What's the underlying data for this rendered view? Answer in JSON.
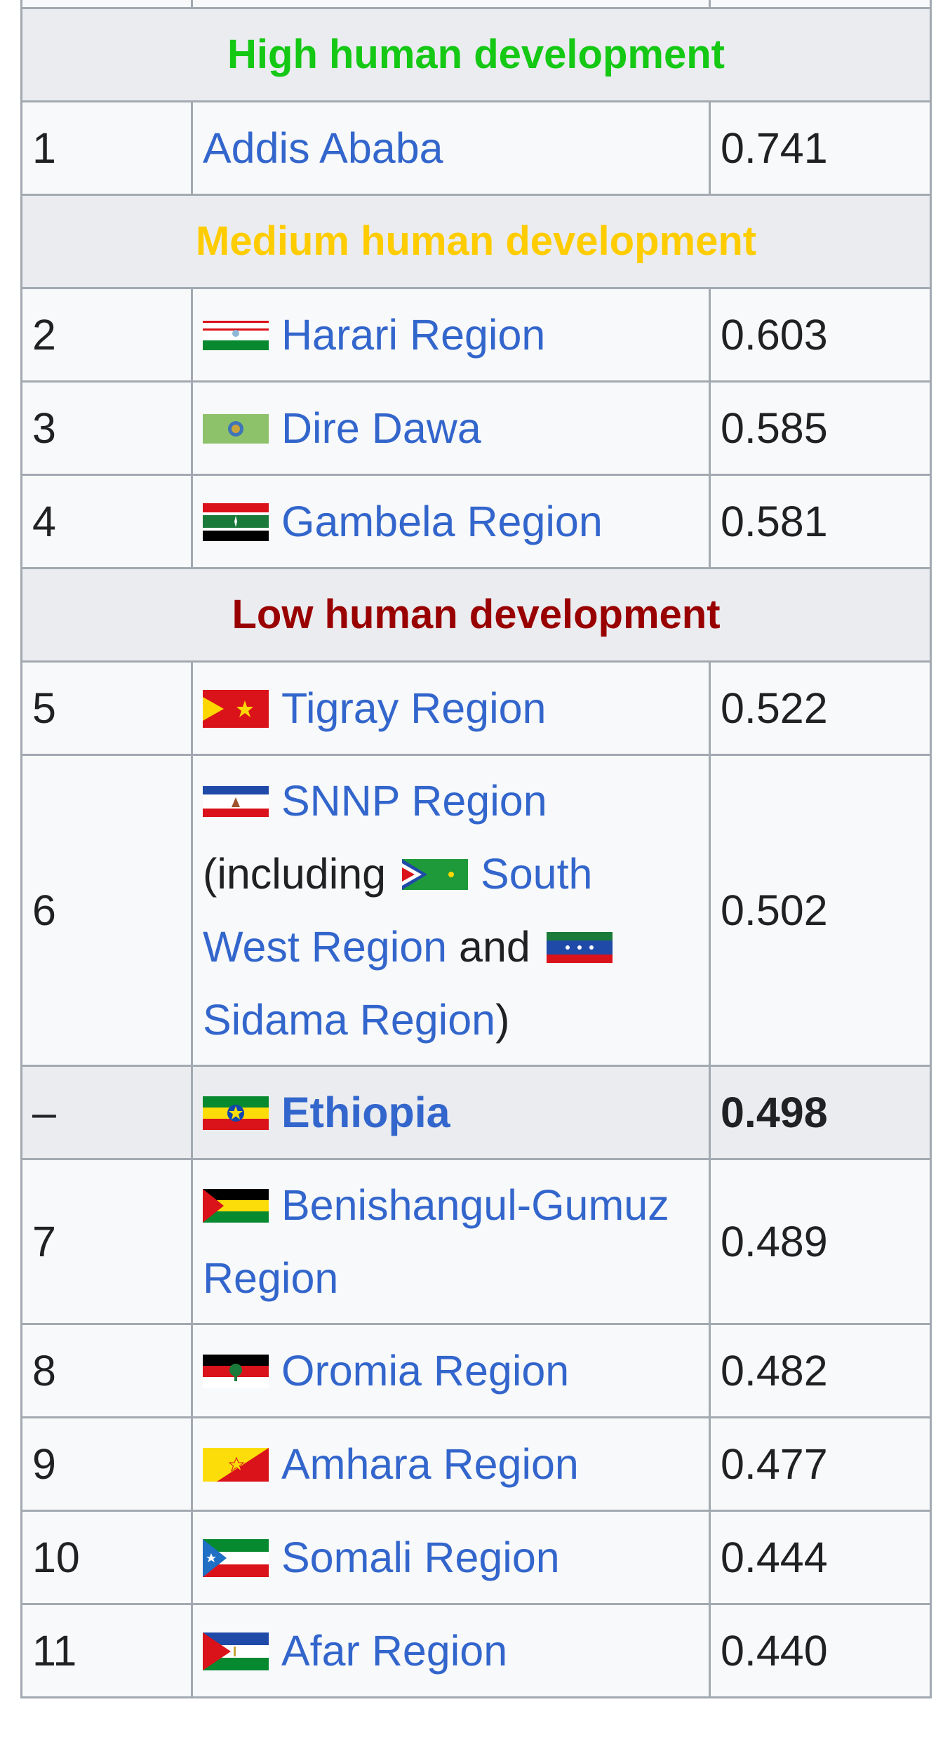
{
  "categories": {
    "high": {
      "label": "High human development",
      "color": "#14c814"
    },
    "medium": {
      "label": "Medium human development",
      "color": "#ffcc00"
    },
    "low": {
      "label": "Low human development",
      "color": "#990000"
    }
  },
  "rows": {
    "r1": {
      "rank": "1",
      "name": "Addis Ababa",
      "hdi": "0.741",
      "flag": "none"
    },
    "r2": {
      "rank": "2",
      "name": "Harari Region",
      "hdi": "0.603",
      "flag": "harari-flag"
    },
    "r3": {
      "rank": "3",
      "name": "Dire Dawa",
      "hdi": "0.585",
      "flag": "dire-dawa-flag"
    },
    "r4": {
      "rank": "4",
      "name": "Gambela Region",
      "hdi": "0.581",
      "flag": "gambela-flag"
    },
    "r5": {
      "rank": "5",
      "name": "Tigray Region",
      "hdi": "0.522",
      "flag": "tigray-flag"
    },
    "r6": {
      "rank": "6",
      "name": "SNNP Region",
      "including_prefix": "(including ",
      "south_west": "South West Region",
      "and_text": " and ",
      "sidama": "Sidama Region",
      "close_paren": ")",
      "hdi": "0.502",
      "flag": "snnp-flag"
    },
    "national": {
      "rank": "–",
      "name": "Ethiopia",
      "hdi": "0.498",
      "flag": "ethiopia-flag"
    },
    "r7": {
      "rank": "7",
      "name": "Benishangul-Gumuz Region",
      "hdi": "0.489",
      "flag": "benishangul-flag"
    },
    "r8": {
      "rank": "8",
      "name": "Oromia Region",
      "hdi": "0.482",
      "flag": "oromia-flag"
    },
    "r9": {
      "rank": "9",
      "name": "Amhara Region",
      "hdi": "0.477",
      "flag": "amhara-flag"
    },
    "r10": {
      "rank": "10",
      "name": "Somali Region",
      "hdi": "0.444",
      "flag": "somali-flag"
    },
    "r11": {
      "rank": "11",
      "name": "Afar Region",
      "hdi": "0.440",
      "flag": "afar-flag"
    }
  },
  "colors": {
    "link": "#3366cc",
    "border": "#a2a9b1",
    "header_bg": "#eaecf0",
    "cell_bg": "#f8f9fa"
  }
}
